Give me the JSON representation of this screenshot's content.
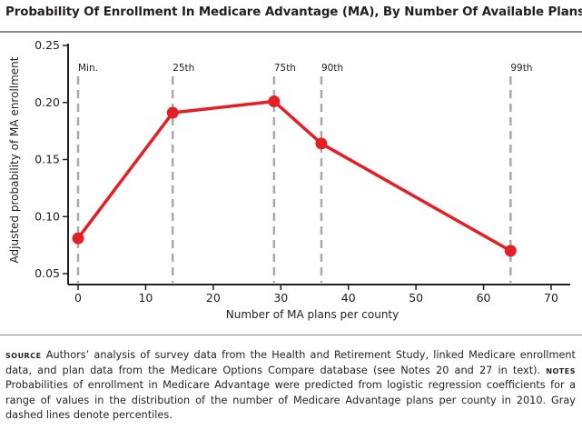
{
  "colors": {
    "series": "#e31e24",
    "percentile_line": "#a7a9ac",
    "axis": "#231f20"
  },
  "chart_data": {
    "type": "line",
    "title": "Probability Of Enrollment In Medicare Advantage (MA), By Number Of Available Plans",
    "xlabel": "Number of MA plans per county",
    "ylabel": "Adjusted probability of MA enrollment",
    "xlim": [
      -1,
      72
    ],
    "ylim": [
      0.05,
      0.25
    ],
    "x_ticks": [
      "0",
      "10",
      "20",
      "30",
      "40",
      "50",
      "60",
      "70"
    ],
    "y_ticks": [
      "0.05",
      "0.10",
      "0.15",
      "0.20",
      "0.25"
    ],
    "x_tick_values": [
      0,
      10,
      20,
      30,
      40,
      50,
      60,
      70
    ],
    "y_tick_values": [
      0.05,
      0.1,
      0.15,
      0.2,
      0.25
    ],
    "series": [
      {
        "x": [
          0,
          14,
          29,
          36,
          64
        ],
        "y": [
          0.081,
          0.191,
          0.201,
          0.164,
          0.07
        ]
      }
    ],
    "percentiles": [
      {
        "label": "Min.",
        "x": 0
      },
      {
        "label": "25th",
        "x": 14
      },
      {
        "label": "75th",
        "x": 29
      },
      {
        "label": "90th",
        "x": 36
      },
      {
        "label": "99th",
        "x": 64
      }
    ],
    "grid": false
  },
  "notes": {
    "source_label": "Source",
    "source_text": " Authors’ analysis of survey data from the Health and Retirement Study, linked Medicare enrollment data, and plan data from the Medicare Options Compare database (see Notes 20 and 27 in text). ",
    "notes_label": "Notes",
    "notes_text": " Probabilities of enrollment in Medicare Advantage were predicted from logistic regression coefficients for a range of values in the distribution of the number of Medicare Advantage plans per county in 2010. Gray dashed lines denote percentiles."
  }
}
